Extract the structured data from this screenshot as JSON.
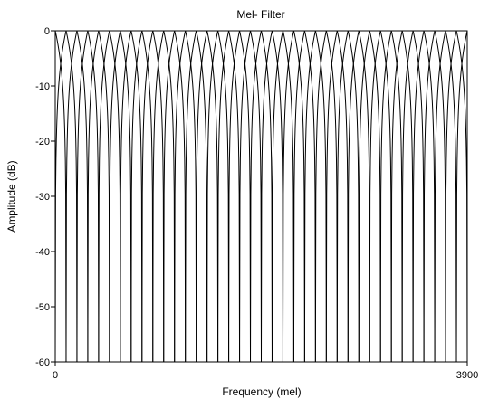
{
  "chart_data": {
    "type": "line",
    "title": "Mel- Filter",
    "xlabel": "Frequency (mel)",
    "ylabel": "Amplitude (dB)",
    "xlim": [
      0,
      3900
    ],
    "ylim": [
      -60,
      0
    ],
    "x_ticks": [
      {
        "value": 0,
        "label": "0"
      },
      {
        "value": 3900,
        "label": "3900"
      }
    ],
    "y_ticks": [
      {
        "value": 0,
        "label": "0"
      },
      {
        "value": -10,
        "label": "-10"
      },
      {
        "value": -20,
        "label": "-20"
      },
      {
        "value": -30,
        "label": "-30"
      },
      {
        "value": -40,
        "label": "-40"
      },
      {
        "value": -50,
        "label": "-50"
      },
      {
        "value": -60,
        "label": "-60"
      }
    ],
    "grid": false,
    "legend": "none",
    "line_color": "#000000",
    "filter_shape": "triangular (mel-spaced, 50% overlap), shown in dB",
    "filter_count": 39,
    "filter_centers_mel": [
      0,
      102.6,
      205.3,
      307.9,
      410.5,
      513.2,
      615.8,
      718.4,
      821.1,
      923.7,
      1026.3,
      1128.9,
      1231.6,
      1334.2,
      1436.8,
      1539.5,
      1642.1,
      1744.7,
      1847.4,
      1950,
      2052.6,
      2155.3,
      2257.9,
      2360.5,
      2463.2,
      2565.8,
      2668.4,
      2771.1,
      2873.7,
      2976.3,
      3078.9,
      3181.6,
      3284.2,
      3386.8,
      3489.5,
      3592.1,
      3694.7,
      3797.4,
      3900
    ],
    "filter_half_width_mel": 102.6,
    "peak_db": 0,
    "floor_db": -60
  }
}
